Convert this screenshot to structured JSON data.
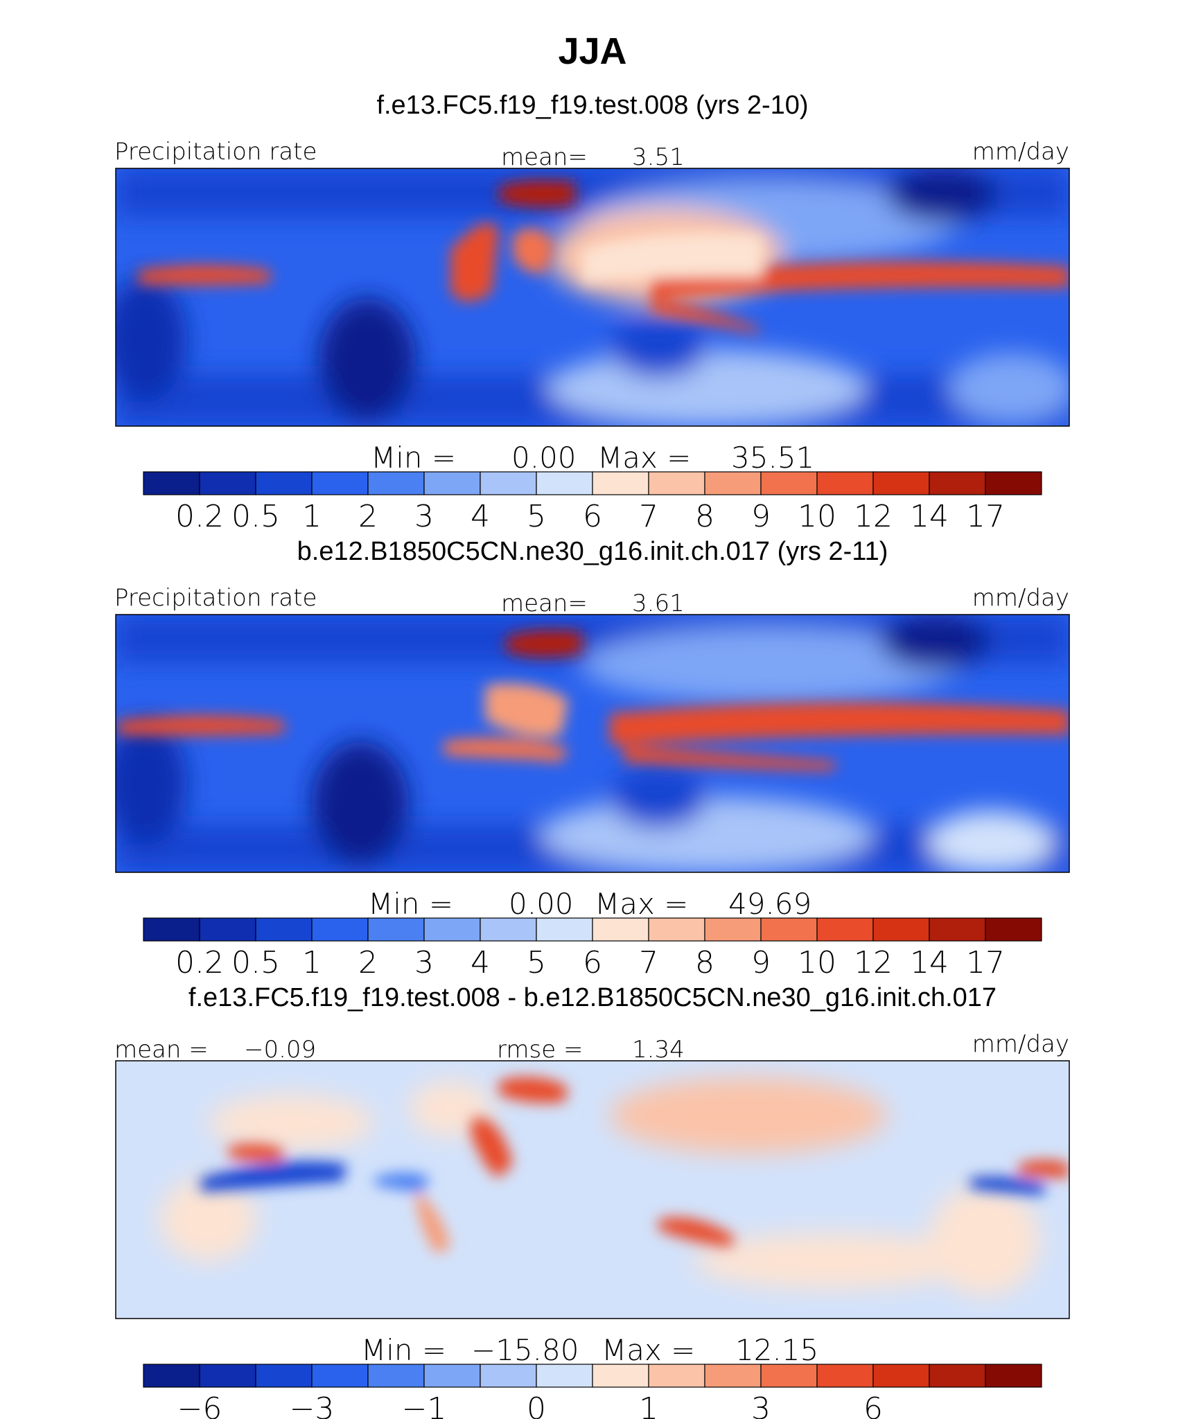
{
  "title": "JJA",
  "chart_data": [
    {
      "type": "heatmap",
      "case_title": "f.e13.FC5.f19_f19.test.008 (yrs 2-10)",
      "variable": "Precipitation rate",
      "mean_label": "mean=",
      "mean_value": "3.51",
      "units": "mm/day",
      "min_label": "Min  =",
      "min_value": "0.00",
      "max_label": "Max  =",
      "max_value": "35.51",
      "colorbar_labels": [
        "0.2",
        "0.5",
        "1",
        "2",
        "3",
        "4",
        "5",
        "6",
        "7",
        "8",
        "9",
        "10",
        "12",
        "14",
        "17"
      ],
      "colors": [
        "#0a1e8c",
        "#0f2fb0",
        "#1645d2",
        "#2a62ee",
        "#4a80f2",
        "#7ea6f6",
        "#a9c4f8",
        "#d2e2fb",
        "#fde3d2",
        "#fbc3a8",
        "#f79c78",
        "#f2724e",
        "#e84c2a",
        "#d63214",
        "#b01e0c",
        "#860a04"
      ]
    },
    {
      "type": "heatmap",
      "case_title": "b.e12.B1850C5CN.ne30_g16.init.ch.017 (yrs 2-11)",
      "variable": "Precipitation rate",
      "mean_label": "mean=",
      "mean_value": "3.61",
      "units": "mm/day",
      "min_label": "Min  =",
      "min_value": "0.00",
      "max_label": "Max  =",
      "max_value": "49.69",
      "colorbar_labels": [
        "0.2",
        "0.5",
        "1",
        "2",
        "3",
        "4",
        "5",
        "6",
        "7",
        "8",
        "9",
        "10",
        "12",
        "14",
        "17"
      ],
      "colors": [
        "#0a1e8c",
        "#0f2fb0",
        "#1645d2",
        "#2a62ee",
        "#4a80f2",
        "#7ea6f6",
        "#a9c4f8",
        "#d2e2fb",
        "#fde3d2",
        "#fbc3a8",
        "#f79c78",
        "#f2724e",
        "#e84c2a",
        "#d63214",
        "#b01e0c",
        "#860a04"
      ]
    },
    {
      "type": "heatmap",
      "case_title": "f.e13.FC5.f19_f19.test.008 - b.e12.B1850C5CN.ne30_g16.init.ch.017",
      "left_label": "mean =",
      "left_value": "−0.09",
      "center_label": "rmse =",
      "center_value": "1.34",
      "units": "mm/day",
      "min_label": "Min  =",
      "min_value": "−15.80",
      "max_label": "Max  =",
      "max_value": "12.15",
      "colorbar_labels": [
        "−6",
        "",
        "−3",
        "",
        "−1",
        "",
        "0",
        "",
        "1",
        "",
        "3",
        "",
        "6",
        "",
        ""
      ],
      "colors": [
        "#0a1e8c",
        "#0f2fb0",
        "#1645d2",
        "#2a62ee",
        "#4a80f2",
        "#7ea6f6",
        "#a9c4f8",
        "#d2e2fb",
        "#fde3d2",
        "#fbc3a8",
        "#f79c78",
        "#f2724e",
        "#e84c2a",
        "#d63214",
        "#b01e0c",
        "#860a04"
      ]
    }
  ]
}
